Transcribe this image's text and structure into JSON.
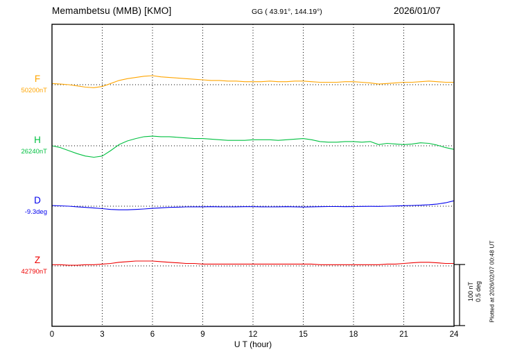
{
  "header": {
    "station": "Memambetsu (MMB)  [KMO]",
    "coords": "GG ( 43.91°, 144.19°)",
    "date": "2026/01/07"
  },
  "axis": {
    "xlabel": "U T (hour)",
    "ticks": [
      0,
      3,
      6,
      9,
      12,
      15,
      18,
      21,
      24
    ]
  },
  "channels": [
    {
      "name": "F",
      "base_label": "50200nT",
      "color": "#ffa500"
    },
    {
      "name": "H",
      "base_label": "26240nT",
      "color": "#00c040"
    },
    {
      "name": "D",
      "base_label": "-9.3deg",
      "color": "#0000ee"
    },
    {
      "name": "Z",
      "base_label": "42790nT",
      "color": "#ee0000"
    }
  ],
  "scalebar": {
    "label_nt": "100 nT",
    "label_deg": "0.5 deg"
  },
  "footer": {
    "plotted": "Plotted at 2026/02/07 00:48 UT"
  },
  "chart_data": {
    "type": "line",
    "title": "Memambetsu (MMB) [KMO] magnetogram 2026/01/07",
    "xlabel": "U T (hour)",
    "xlim": [
      0,
      24
    ],
    "x_hours_step": 0.5,
    "grid": "dotted vertical every 3 hours, dotted horizontal baseline per channel",
    "scale": {
      "nT_per_bar": 100,
      "deg_per_bar": 0.5
    },
    "series": [
      {
        "name": "F",
        "unit": "nT",
        "baseline_value": 50200,
        "baseline_label": "50200nT",
        "color": "#ffa500",
        "values": [
          2,
          1,
          0,
          -2,
          -4,
          -5,
          -3,
          2,
          7,
          10,
          12,
          14,
          15,
          13,
          12,
          11,
          10,
          9,
          8,
          7,
          7,
          6,
          6,
          5,
          5,
          5,
          6,
          5,
          5,
          6,
          6,
          5,
          4,
          4,
          4,
          5,
          5,
          4,
          3,
          1,
          2,
          3,
          4,
          4,
          5,
          6,
          5,
          4,
          4
        ]
      },
      {
        "name": "H",
        "unit": "nT",
        "baseline_value": 26240,
        "baseline_label": "26240nT",
        "color": "#00c040",
        "values": [
          0,
          -3,
          -8,
          -13,
          -17,
          -19,
          -17,
          -8,
          2,
          8,
          12,
          15,
          16,
          15,
          15,
          14,
          13,
          12,
          12,
          11,
          10,
          9,
          9,
          9,
          10,
          10,
          10,
          9,
          10,
          11,
          12,
          10,
          7,
          6,
          6,
          7,
          7,
          6,
          7,
          2,
          4,
          3,
          2,
          3,
          5,
          4,
          1,
          -3,
          -6
        ]
      },
      {
        "name": "D",
        "unit": "deg",
        "baseline_value": -9.3,
        "baseline_label": "-9.3deg",
        "color": "#0000ee",
        "values": [
          0.005,
          0.003,
          0,
          -0.005,
          -0.01,
          -0.015,
          -0.02,
          -0.027,
          -0.03,
          -0.03,
          -0.027,
          -0.023,
          -0.018,
          -0.014,
          -0.01,
          -0.008,
          -0.006,
          -0.005,
          -0.005,
          -0.004,
          -0.005,
          -0.006,
          -0.005,
          -0.004,
          -0.004,
          -0.005,
          -0.006,
          -0.005,
          -0.004,
          -0.005,
          -0.007,
          -0.005,
          -0.004,
          -0.003,
          -0.003,
          -0.004,
          -0.003,
          -0.002,
          -0.001,
          -0.002,
          0,
          0.002,
          0.004,
          0.006,
          0.008,
          0.012,
          0.018,
          0.028,
          0.045
        ]
      },
      {
        "name": "Z",
        "unit": "nT",
        "baseline_value": 42790,
        "baseline_label": "42790nT",
        "color": "#ee0000",
        "values": [
          2,
          2,
          1,
          1,
          2,
          2,
          3,
          4,
          6,
          7,
          8,
          8,
          8,
          7,
          6,
          5,
          4,
          4,
          3,
          3,
          3,
          3,
          3,
          3,
          3,
          3,
          3,
          3,
          3,
          3,
          3,
          3,
          2,
          2,
          2,
          2,
          2,
          2,
          2,
          2,
          3,
          3,
          4,
          5,
          6,
          6,
          5,
          4,
          4
        ]
      }
    ]
  }
}
